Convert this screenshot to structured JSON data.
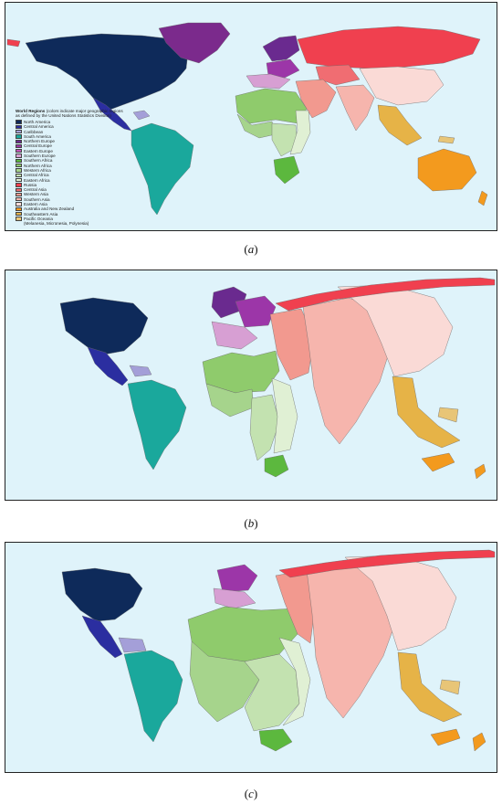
{
  "legend": {
    "title": "World Regions",
    "subtitle": " (colors indicate major geographic regions as defined by the United Nations Statistics Division)",
    "items": [
      {
        "label": "North America",
        "color": "#0e2a5a"
      },
      {
        "label": "Central America",
        "color": "#2b2ea0"
      },
      {
        "label": "Caribbean",
        "color": "#a49fd8"
      },
      {
        "label": "South America",
        "color": "#1aa89c"
      },
      {
        "label": "Northern Europe",
        "color": "#6a2a8f"
      },
      {
        "label": "Central Europe",
        "color": "#9c36a8"
      },
      {
        "label": "Eastern Europe",
        "color": "#c257b8"
      },
      {
        "label": "Southern Europe",
        "color": "#d79fd3"
      },
      {
        "label": "Southern Africa",
        "color": "#5cb83e"
      },
      {
        "label": "Northern Africa",
        "color": "#8fcb6c"
      },
      {
        "label": "Western Africa",
        "color": "#a6d48c"
      },
      {
        "label": "Central Africa",
        "color": "#c3e2b0"
      },
      {
        "label": "Eastern Africa",
        "color": "#e0f0d4"
      },
      {
        "label": "Russia",
        "color": "#f0404f"
      },
      {
        "label": "Central Asia",
        "color": "#f06d72"
      },
      {
        "label": "Western Asia",
        "color": "#f2998f"
      },
      {
        "label": "Southern Asia",
        "color": "#f6b5ad"
      },
      {
        "label": "Eastern Asia",
        "color": "#fadad6"
      },
      {
        "label": "Australia and New Zealand",
        "color": "#f39a1e"
      },
      {
        "label": "Southeastern Asia",
        "color": "#e6b347"
      },
      {
        "label": "Pacific Oceania",
        "color": "#e8c577"
      }
    ],
    "note": "(Melanesia, Micronesia, Polynesia)"
  },
  "captions": {
    "a_pre": "(",
    "a": "a",
    "a_post": ")",
    "b_pre": "(",
    "b": "b",
    "b_post": ")",
    "c_pre": "(",
    "c": "c",
    "c_post": ")"
  }
}
